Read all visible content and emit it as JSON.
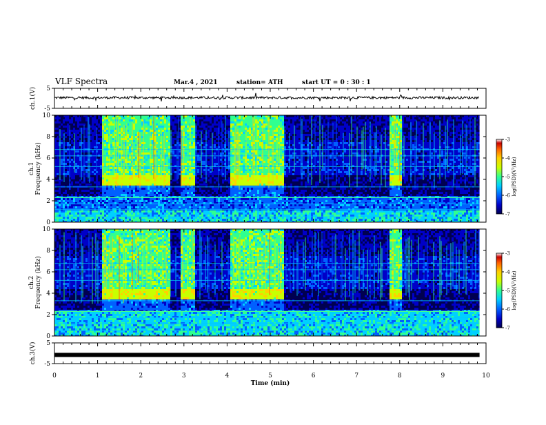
{
  "header": {
    "title": "VLF Spectra",
    "date": "Mar.4 , 2021",
    "station": "station= ATH",
    "start": "start UT =  0 : 30 : 1"
  },
  "chart_data": [
    {
      "type": "line",
      "panel": "ch1-waveform",
      "ylabel": "ch.1(V)",
      "ylim": [
        -5,
        5
      ],
      "yticks": [
        "5",
        "-5"
      ],
      "xlim": [
        0,
        10
      ],
      "series": [
        {
          "level": 0.3,
          "noise": "small"
        }
      ]
    },
    {
      "type": "heatmap",
      "panel": "ch1-spectrogram",
      "ylabel": "ch.1\nFrequency (kHz)",
      "ylim": [
        0,
        10
      ],
      "yticks": [
        "0",
        "2",
        "4",
        "6",
        "8",
        "10"
      ],
      "xlim": [
        0,
        10
      ],
      "bursts": [
        [
          1.1,
          2.15
        ],
        [
          2.15,
          2.65
        ],
        [
          2.9,
          3.25
        ],
        [
          4.05,
          5.3
        ],
        [
          7.75,
          8.05
        ]
      ],
      "colorbar": {
        "label": "log(PSD)(V²/Hz)",
        "ticks": [
          "-3",
          "-4",
          "-5",
          "-6",
          "-7"
        ],
        "range": [
          -7,
          -3
        ]
      }
    },
    {
      "type": "heatmap",
      "panel": "ch2-spectrogram",
      "ylabel": "ch.2\nFrequency (kHz)",
      "ylim": [
        0,
        10
      ],
      "yticks": [
        "0",
        "2",
        "4",
        "6",
        "8",
        "10"
      ],
      "xlim": [
        0,
        10
      ],
      "bursts": [
        [
          1.1,
          2.65
        ],
        [
          2.9,
          3.25
        ],
        [
          4.05,
          5.3
        ],
        [
          7.75,
          8.05
        ]
      ],
      "colorbar": {
        "label": "log(PSD)(V²/Hz)",
        "ticks": [
          "-3",
          "-4",
          "-5",
          "-6",
          "-7"
        ],
        "range": [
          -7,
          -3
        ]
      }
    },
    {
      "type": "line",
      "panel": "ch3-waveform",
      "ylabel": "ch.3(V)",
      "ylim": [
        -5,
        5
      ],
      "yticks": [
        "5",
        "-5"
      ],
      "xlim": [
        0,
        10
      ],
      "series": [
        {
          "level": -0.8,
          "noise": "saturated"
        }
      ]
    }
  ],
  "xaxis": {
    "label": "Time (min)",
    "ticks": [
      "0",
      "1",
      "2",
      "3",
      "4",
      "5",
      "6",
      "7",
      "8",
      "9",
      "10"
    ],
    "range": [
      0,
      10
    ],
    "data_end": 9.85
  },
  "colors": {
    "colormap": [
      "#000050",
      "#0000c8",
      "#0060ff",
      "#00d0ff",
      "#30ff90",
      "#c8ff00",
      "#ffd000",
      "#ff6000",
      "#c80000",
      "#ffffff"
    ],
    "axis": "#000000"
  }
}
